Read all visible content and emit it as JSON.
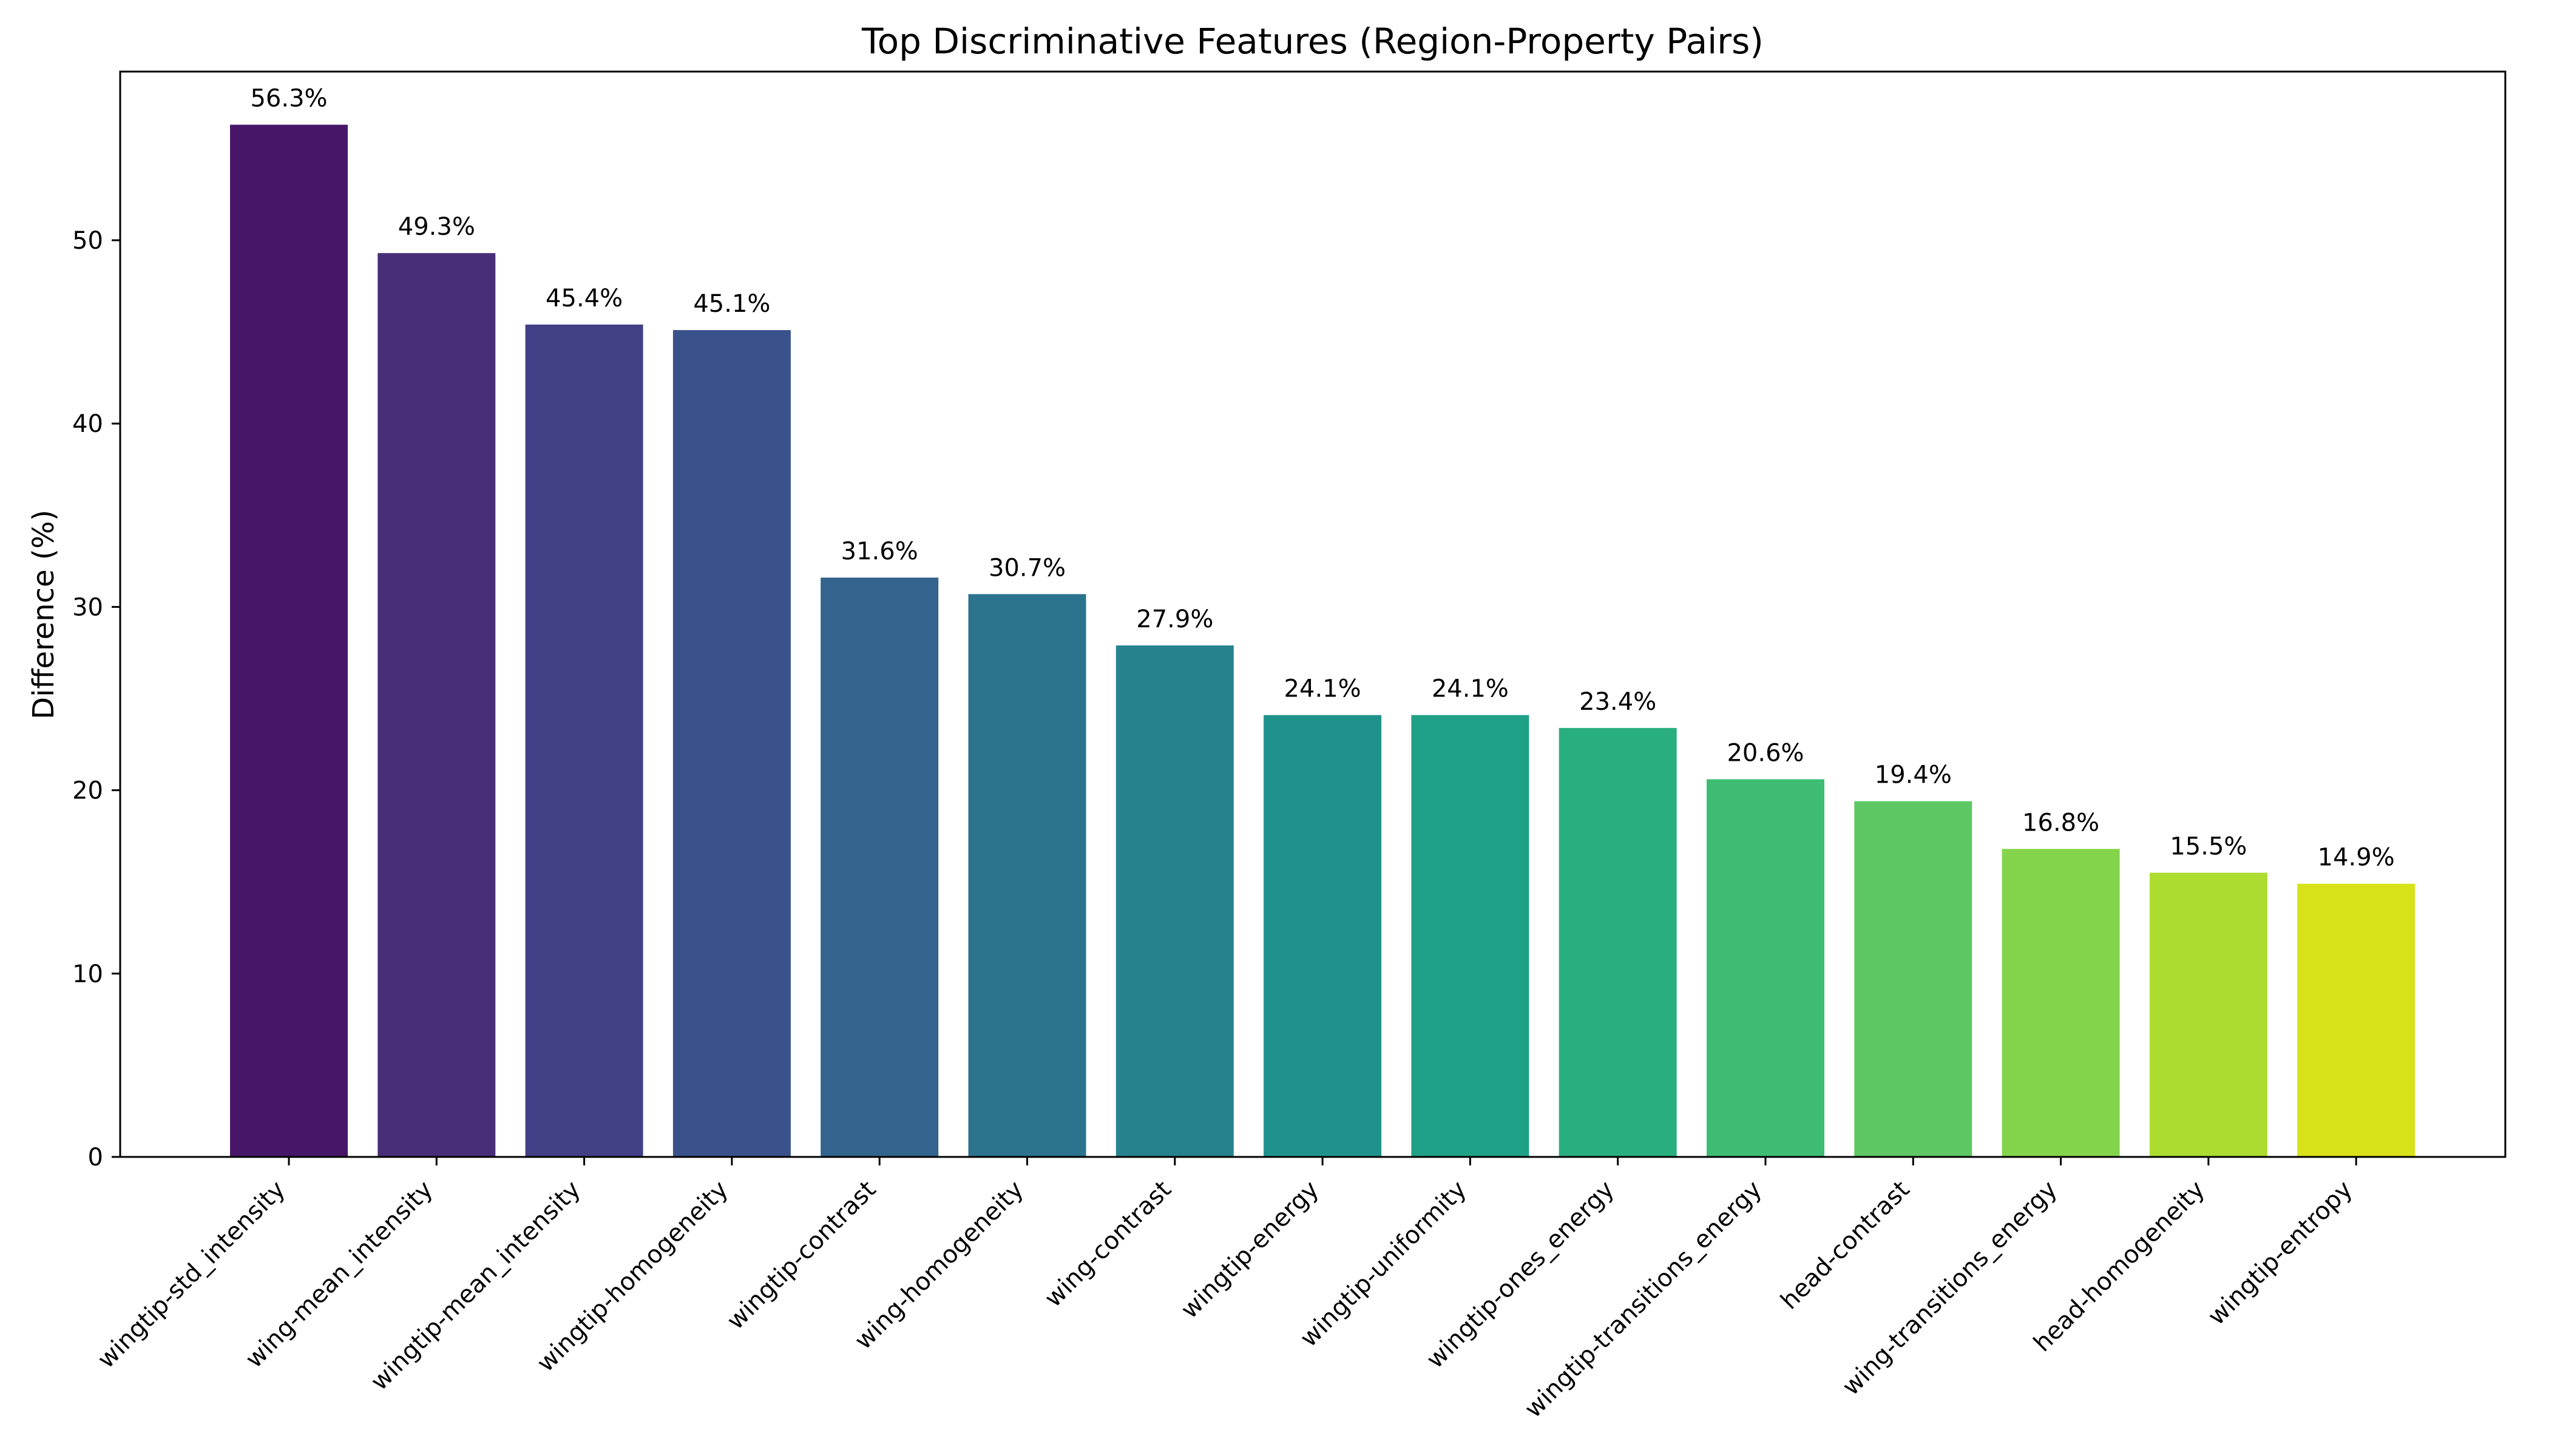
{
  "chart_data": {
    "type": "bar",
    "title": "Top Discriminative Features (Region-Property Pairs)",
    "xlabel": "",
    "ylabel": "Difference (%)",
    "ylim": [
      0,
      59.2
    ],
    "yticks": [
      0,
      10,
      20,
      30,
      40,
      50
    ],
    "grid": false,
    "categories": [
      "wingtip-std_intensity",
      "wing-mean_intensity",
      "wingtip-mean_intensity",
      "wingtip-homogeneity",
      "wingtip-contrast",
      "wing-homogeneity",
      "wing-contrast",
      "wingtip-energy",
      "wingtip-uniformity",
      "wingtip-ones_energy",
      "wingtip-transitions_energy",
      "head-contrast",
      "wing-transitions_energy",
      "head-homogeneity",
      "wingtip-entropy"
    ],
    "values": [
      56.3,
      49.3,
      45.4,
      45.1,
      31.6,
      30.7,
      27.9,
      24.1,
      24.1,
      23.4,
      20.6,
      19.4,
      16.8,
      15.5,
      14.9
    ],
    "value_labels": [
      "56.3%",
      "49.3%",
      "45.4%",
      "45.1%",
      "31.6%",
      "30.7%",
      "27.9%",
      "24.1%",
      "24.1%",
      "23.4%",
      "20.6%",
      "19.4%",
      "16.8%",
      "15.5%",
      "14.9%"
    ],
    "colors": [
      "#481668",
      "#482e79",
      "#424086",
      "#3a528b",
      "#32648e",
      "#2c738e",
      "#26838e",
      "#20928c",
      "#1fa187",
      "#29af7f",
      "#3fbc73",
      "#5dc863",
      "#84d44b",
      "#addc30",
      "#d8e219"
    ]
  }
}
